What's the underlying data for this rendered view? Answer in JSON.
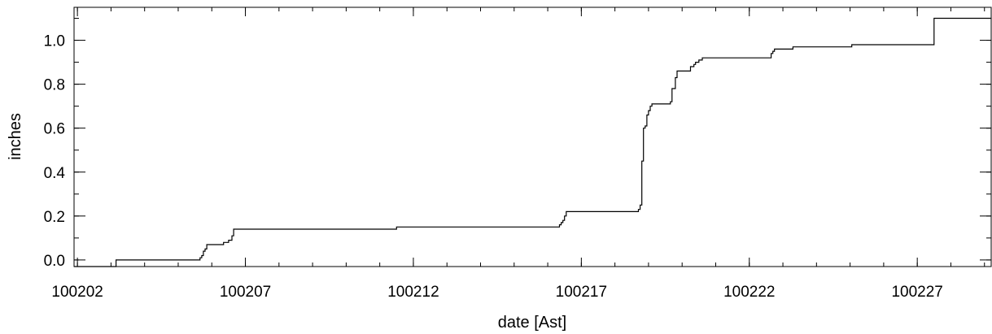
{
  "chart_data": {
    "type": "line",
    "step": true,
    "xlabel": "date [Ast]",
    "ylabel": "inches",
    "x_ticks": [
      {
        "label": "100202",
        "day": 2
      },
      {
        "label": "100207",
        "day": 7
      },
      {
        "label": "100212",
        "day": 12
      },
      {
        "label": "100217",
        "day": 17
      },
      {
        "label": "100222",
        "day": 22
      },
      {
        "label": "100227",
        "day": 27
      }
    ],
    "x_minor_step_days": 1,
    "xlim": [
      1.9,
      29.2
    ],
    "y_ticks": [
      {
        "label": "0.0",
        "value": 0.0
      },
      {
        "label": "0.2",
        "value": 0.2
      },
      {
        "label": "0.4",
        "value": 0.4
      },
      {
        "label": "0.6",
        "value": 0.6
      },
      {
        "label": "0.8",
        "value": 0.8
      },
      {
        "label": "1.0",
        "value": 1.0
      }
    ],
    "y_minor_step": 0.1,
    "ylim": [
      -0.03,
      1.15
    ],
    "grid": false,
    "series": [
      {
        "x": [
          1.9,
          3.15,
          3.15,
          5.6,
          5.65,
          5.7,
          5.75,
          5.8,
          5.85,
          6.3,
          6.35,
          6.5,
          6.6,
          6.65,
          11.45,
          11.5,
          16.3,
          16.35,
          16.4,
          16.45,
          16.5,
          16.55,
          18.65,
          18.7,
          18.75,
          18.8,
          18.85,
          18.9,
          18.95,
          19.0,
          19.05,
          19.1,
          19.25,
          19.3,
          19.65,
          19.7,
          19.8,
          19.85,
          19.95,
          20.2,
          20.25,
          20.35,
          20.4,
          20.5,
          20.6,
          20.65,
          22.6,
          22.65,
          22.7,
          22.75,
          23.25,
          23.3,
          25.0,
          25.05,
          27.45,
          27.5,
          29.2
        ],
        "y": [
          -0.03,
          -0.03,
          0.0,
          0.0,
          0.01,
          0.02,
          0.04,
          0.05,
          0.07,
          0.07,
          0.08,
          0.09,
          0.11,
          0.14,
          0.14,
          0.15,
          0.15,
          0.16,
          0.17,
          0.18,
          0.2,
          0.22,
          0.22,
          0.23,
          0.25,
          0.45,
          0.6,
          0.61,
          0.66,
          0.68,
          0.7,
          0.71,
          0.71,
          0.71,
          0.72,
          0.78,
          0.83,
          0.86,
          0.86,
          0.86,
          0.88,
          0.89,
          0.9,
          0.91,
          0.92,
          0.92,
          0.92,
          0.94,
          0.95,
          0.96,
          0.96,
          0.97,
          0.97,
          0.98,
          0.98,
          1.1,
          1.1
        ]
      }
    ]
  }
}
